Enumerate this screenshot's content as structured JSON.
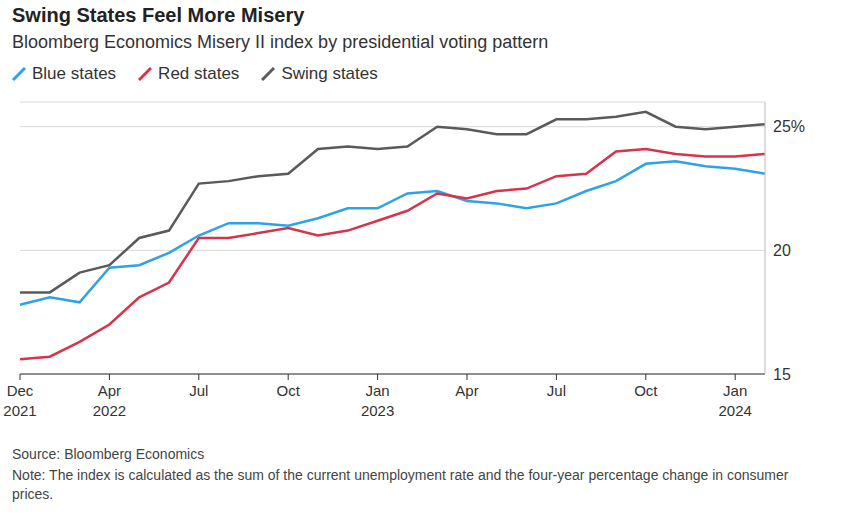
{
  "chart_data": {
    "type": "line",
    "title": "Swing States Feel More Misery",
    "subtitle": "Bloomberg Economics Misery II index by presidential voting pattern",
    "source": "Source: Bloomberg Economics",
    "note": "Note: The index is calculated as the sum of the current unemployment rate and the four-year percentage change in consumer prices.",
    "categories": [
      "Dec 2021",
      null,
      null,
      "Apr 2022",
      null,
      null,
      "Jul",
      null,
      null,
      "Oct",
      null,
      null,
      "Jan 2023",
      null,
      null,
      "Apr",
      null,
      null,
      "Jul",
      null,
      null,
      "Oct",
      null,
      null,
      "Jan 2024",
      null
    ],
    "series": [
      {
        "name": "Blue states",
        "color": "#2ea3e3",
        "values": [
          17.8,
          18.1,
          17.9,
          19.3,
          19.4,
          19.9,
          20.6,
          21.1,
          21.1,
          21.0,
          21.3,
          21.7,
          21.7,
          22.3,
          22.4,
          22.0,
          21.9,
          21.7,
          21.9,
          22.4,
          22.8,
          23.5,
          23.6,
          23.4,
          23.3,
          23.1
        ]
      },
      {
        "name": "Red states",
        "color": "#d6344c",
        "values": [
          15.6,
          15.7,
          16.3,
          17.0,
          18.1,
          18.7,
          20.5,
          20.5,
          20.7,
          20.9,
          20.6,
          20.8,
          21.2,
          21.6,
          22.3,
          22.1,
          22.4,
          22.5,
          23.0,
          23.1,
          24.0,
          24.1,
          23.9,
          23.8,
          23.8,
          23.9
        ]
      },
      {
        "name": "Swing states",
        "color": "#5a5a5a",
        "values": [
          18.3,
          18.3,
          19.1,
          19.4,
          20.5,
          20.8,
          22.7,
          22.8,
          23.0,
          23.1,
          24.1,
          24.2,
          24.1,
          24.2,
          25.0,
          24.9,
          24.7,
          24.7,
          25.3,
          25.3,
          25.4,
          25.6,
          25.0,
          24.9,
          25.0,
          25.1
        ]
      }
    ],
    "ylim": [
      15,
      26
    ],
    "yticks": [
      15,
      20,
      {
        "value": 25,
        "label": "25%"
      }
    ],
    "grid": true,
    "legend": "top"
  }
}
